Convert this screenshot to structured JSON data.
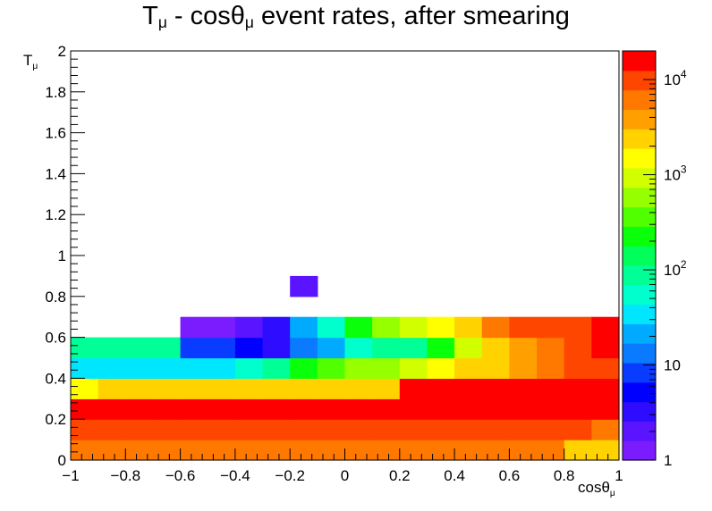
{
  "chart_data": {
    "type": "heatmap",
    "title": {
      "main": "T",
      "sub1": "μ",
      "mid": " - cosθ",
      "sub2": "μ",
      "end": " event rates, after smearing"
    },
    "xlabel": {
      "main": "cosθ",
      "sub": "μ"
    },
    "ylabel": {
      "main": "T",
      "sub": "μ"
    },
    "x_range": [
      -1,
      1
    ],
    "y_range": [
      0,
      2
    ],
    "x_bins": 20,
    "y_bins": 20,
    "x_ticks": [
      "−1",
      "−0.8",
      "−0.6",
      "−0.4",
      "−0.2",
      "0",
      "0.2",
      "0.4",
      "0.6",
      "0.8",
      "1"
    ],
    "y_ticks": [
      "0",
      "0.2",
      "0.4",
      "0.6",
      "0.8",
      "1",
      "1.2",
      "1.4",
      "1.6",
      "1.8",
      "2"
    ],
    "z_scale": "log",
    "z_range": [
      1,
      20000
    ],
    "colorbar_ticks": [
      {
        "value": 1,
        "base": "1",
        "exp": ""
      },
      {
        "value": 10,
        "base": "10",
        "exp": ""
      },
      {
        "value": 100,
        "base": "10",
        "exp": "2"
      },
      {
        "value": 1000,
        "base": "10",
        "exp": "3"
      },
      {
        "value": 10000,
        "base": "10",
        "exp": "4"
      }
    ],
    "palette": [
      "#7b1cff",
      "#5a14ff",
      "#2e0cff",
      "#0000ff",
      "#0a3cff",
      "#0a7aff",
      "#00aaff",
      "#00e6ff",
      "#00ffcc",
      "#00ff96",
      "#00ff5a",
      "#0aff0a",
      "#50ff00",
      "#96ff00",
      "#d2ff00",
      "#ffff00",
      "#ffd200",
      "#ffa000",
      "#ff7800",
      "#ff4600",
      "#ff0000"
    ],
    "values": [
      [
        6000,
        6000,
        6000,
        6000,
        6000,
        6000,
        6000,
        6000,
        6000,
        6000,
        6000,
        6000,
        6000,
        6000,
        6000,
        6000,
        6000,
        6000,
        3000,
        2000
      ],
      [
        9000,
        9000,
        9000,
        9000,
        9000,
        9000,
        9000,
        9000,
        9000,
        9000,
        9000,
        9000,
        9000,
        9000,
        9000,
        9000,
        9000,
        9000,
        9000,
        6000
      ],
      [
        15000,
        15000,
        15000,
        15000,
        15000,
        15000,
        15000,
        15000,
        15000,
        15000,
        20000,
        20000,
        20000,
        20000,
        20000,
        20000,
        20000,
        20000,
        20000,
        15000
      ],
      [
        1500,
        2000,
        2000,
        3000,
        3000,
        3000,
        3000,
        3000,
        3000,
        3000,
        3000,
        3000,
        20000,
        20000,
        20000,
        20000,
        20000,
        20000,
        20000,
        15000
      ],
      [
        30,
        30,
        30,
        40,
        40,
        40,
        50,
        70,
        200,
        300,
        500,
        700,
        1000,
        1400,
        2500,
        3000,
        4000,
        6000,
        8000,
        12000
      ],
      [
        80,
        80,
        80,
        80,
        10,
        8,
        6,
        4,
        15,
        25,
        50,
        70,
        100,
        200,
        1000,
        2000,
        4000,
        6000,
        8000,
        16000
      ],
      [
        null,
        null,
        null,
        null,
        1,
        1,
        2,
        4,
        20,
        50,
        200,
        500,
        800,
        1500,
        3000,
        5000,
        8000,
        10000,
        12000,
        16000
      ],
      [
        null,
        null,
        null,
        null,
        null,
        null,
        null,
        null,
        null,
        null,
        null,
        null,
        null,
        null,
        null,
        null,
        null,
        null,
        null,
        null
      ],
      [
        null,
        null,
        null,
        null,
        null,
        null,
        null,
        null,
        2,
        null,
        null,
        null,
        null,
        null,
        null,
        null,
        null,
        null,
        null,
        null
      ],
      [
        null,
        null,
        null,
        null,
        null,
        null,
        null,
        null,
        null,
        null,
        null,
        null,
        null,
        null,
        null,
        null,
        null,
        null,
        null,
        null
      ],
      [
        null,
        null,
        null,
        null,
        null,
        null,
        null,
        null,
        null,
        null,
        null,
        null,
        null,
        null,
        null,
        null,
        null,
        null,
        null,
        null
      ],
      [
        null,
        null,
        null,
        null,
        null,
        null,
        null,
        null,
        null,
        null,
        null,
        null,
        null,
        null,
        null,
        null,
        null,
        null,
        null,
        null
      ],
      [
        null,
        null,
        null,
        null,
        null,
        null,
        null,
        null,
        null,
        null,
        null,
        null,
        null,
        null,
        null,
        null,
        null,
        null,
        null,
        null
      ],
      [
        null,
        null,
        null,
        null,
        null,
        null,
        null,
        null,
        null,
        null,
        null,
        null,
        null,
        null,
        null,
        null,
        null,
        null,
        null,
        null
      ],
      [
        null,
        null,
        null,
        null,
        null,
        null,
        null,
        null,
        null,
        null,
        null,
        null,
        null,
        null,
        null,
        null,
        null,
        null,
        null,
        null
      ],
      [
        null,
        null,
        null,
        null,
        null,
        null,
        null,
        null,
        null,
        null,
        null,
        null,
        null,
        null,
        null,
        null,
        null,
        null,
        null,
        null
      ],
      [
        null,
        null,
        null,
        null,
        null,
        null,
        null,
        null,
        null,
        null,
        null,
        null,
        null,
        null,
        null,
        null,
        null,
        null,
        null,
        null
      ],
      [
        null,
        null,
        null,
        null,
        null,
        null,
        null,
        null,
        null,
        null,
        null,
        null,
        null,
        null,
        null,
        null,
        null,
        null,
        null,
        null
      ],
      [
        null,
        null,
        null,
        null,
        null,
        null,
        null,
        null,
        null,
        null,
        null,
        null,
        null,
        null,
        null,
        null,
        null,
        null,
        null,
        null
      ],
      [
        null,
        null,
        null,
        null,
        null,
        null,
        null,
        null,
        null,
        null,
        null,
        null,
        null,
        null,
        null,
        null,
        null,
        null,
        null,
        null
      ]
    ]
  }
}
